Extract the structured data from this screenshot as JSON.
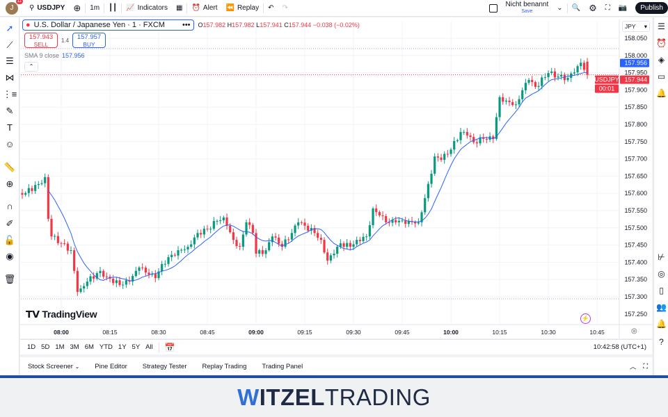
{
  "topbar": {
    "avatar_letter": "J",
    "notifications": "11",
    "symbol": "USDJPY",
    "interval": "1m",
    "indicators": "Indicators",
    "alert": "Alert",
    "replay": "Replay",
    "layout_name": "Nicht benannt",
    "save": "Save",
    "publish": "Publish"
  },
  "legend": {
    "title": "U.S. Dollar / Japanese Yen · 1 · FXCM",
    "o_label": "O",
    "o": "157.982",
    "h_label": "H",
    "h": "157.982",
    "l_label": "L",
    "l": "157.941",
    "c_label": "C",
    "c": "157.944",
    "change": "−0.038 (−0.02%)",
    "sell_price": "157.943",
    "sell": "SELL",
    "spread": "1.4",
    "buy_price": "157.957",
    "buy": "BUY",
    "sma_label": "SMA 9 close",
    "sma_value": "157.956"
  },
  "price_scale": {
    "currency": "JPY",
    "ticks": [
      "158.050",
      "158.000",
      "157.950",
      "157.900",
      "157.850",
      "157.800",
      "157.750",
      "157.700",
      "157.650",
      "157.600",
      "157.550",
      "157.500",
      "157.450",
      "157.400",
      "157.350",
      "157.300",
      "157.250"
    ],
    "sma_tag": "157.956",
    "symbol_tag": "USDJPY",
    "last_price": "157.944",
    "countdown": "00:01"
  },
  "time_axis": {
    "ticks": [
      "08:00",
      "08:15",
      "08:30",
      "08:45",
      "09:00",
      "09:15",
      "09:30",
      "09:45",
      "10:00",
      "10:15",
      "10:30",
      "10:45"
    ],
    "bold": [
      "08:00",
      "09:00",
      "10:00"
    ]
  },
  "brand": "TradingView",
  "colors": {
    "up": "#089981",
    "down": "#f23645",
    "sma": "#2962ff",
    "accent": "#2962ff"
  },
  "chart_data": {
    "type": "candlestick",
    "sma_period": 9,
    "keypoints": [
      [
        "07:48",
        157.596
      ],
      [
        "07:53",
        157.627
      ],
      [
        "07:55",
        157.647
      ],
      [
        "07:56",
        157.526
      ],
      [
        "07:57",
        157.475
      ],
      [
        "08:03",
        157.435
      ],
      [
        "08:04",
        157.375
      ],
      [
        "08:05",
        157.314
      ],
      [
        "08:06",
        157.324
      ],
      [
        "08:08",
        157.344
      ],
      [
        "08:12",
        157.375
      ],
      [
        "08:14",
        157.358
      ],
      [
        "08:18",
        157.334
      ],
      [
        "08:21",
        157.344
      ],
      [
        "08:24",
        157.385
      ],
      [
        "08:27",
        157.364
      ],
      [
        "08:29",
        157.354
      ],
      [
        "08:31",
        157.395
      ],
      [
        "08:36",
        157.435
      ],
      [
        "08:39",
        157.445
      ],
      [
        "08:42",
        157.485
      ],
      [
        "08:45",
        157.496
      ],
      [
        "08:48",
        157.52
      ],
      [
        "08:50",
        157.53
      ],
      [
        "08:51",
        157.506
      ],
      [
        "08:53",
        157.465
      ],
      [
        "08:55",
        157.445
      ],
      [
        "08:57",
        157.516
      ],
      [
        "08:59",
        157.485
      ],
      [
        "09:00",
        157.425
      ],
      [
        "09:03",
        157.435
      ],
      [
        "09:05",
        157.475
      ],
      [
        "09:08",
        157.445
      ],
      [
        "09:11",
        157.485
      ],
      [
        "09:13",
        157.516
      ],
      [
        "09:15",
        157.506
      ],
      [
        "09:18",
        157.485
      ],
      [
        "09:20",
        157.465
      ],
      [
        "09:22",
        157.405
      ],
      [
        "09:24",
        157.425
      ],
      [
        "09:26",
        157.455
      ],
      [
        "09:29",
        157.445
      ],
      [
        "09:31",
        157.465
      ],
      [
        "09:34",
        157.475
      ],
      [
        "09:36",
        157.556
      ],
      [
        "09:38",
        157.536
      ],
      [
        "09:40",
        157.516
      ],
      [
        "09:43",
        157.516
      ],
      [
        "09:47",
        157.52
      ],
      [
        "09:50",
        157.516
      ],
      [
        "09:52",
        157.586
      ],
      [
        "09:54",
        157.657
      ],
      [
        "09:55",
        157.707
      ],
      [
        "09:57",
        157.697
      ],
      [
        "10:00",
        157.727
      ],
      [
        "10:03",
        157.778
      ],
      [
        "10:05",
        157.768
      ],
      [
        "10:07",
        157.748
      ],
      [
        "10:10",
        157.758
      ],
      [
        "10:13",
        157.758
      ],
      [
        "10:15",
        157.879
      ],
      [
        "10:17",
        157.869
      ],
      [
        "10:20",
        157.858
      ],
      [
        "10:22",
        157.899
      ],
      [
        "10:24",
        157.929
      ],
      [
        "10:26",
        157.909
      ],
      [
        "10:30",
        157.949
      ],
      [
        "10:33",
        157.939
      ],
      [
        "10:36",
        157.935
      ],
      [
        "10:39",
        157.969
      ],
      [
        "10:40",
        157.979
      ],
      [
        "10:42",
        157.944
      ]
    ]
  },
  "range_bar": {
    "ranges": [
      "1D",
      "5D",
      "1M",
      "3M",
      "6M",
      "YTD",
      "1Y",
      "5Y",
      "All"
    ],
    "clock": "10:42:58 (UTC+1)"
  },
  "bottom_panel": {
    "tabs": [
      "Stock Screener",
      "Pine Editor",
      "Strategy Tester",
      "Replay Trading",
      "Trading Panel"
    ]
  },
  "footer": {
    "logo_w": "W",
    "logo_itzel": "ITZEL",
    "logo_trading": "TRADING"
  }
}
